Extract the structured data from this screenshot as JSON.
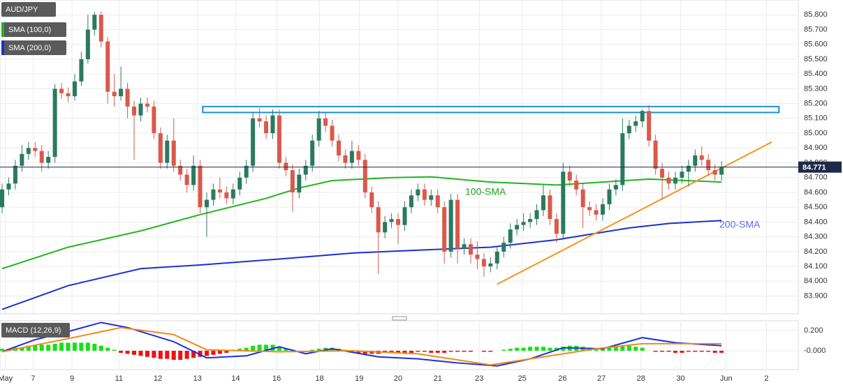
{
  "chart_data": [
    {
      "type": "candlestick",
      "title": "AUD/JPY",
      "x": [
        0,
        1,
        2,
        3,
        4,
        5,
        6,
        7,
        8,
        9,
        10,
        11,
        12,
        13,
        14,
        15,
        16,
        17,
        18,
        19,
        20,
        21,
        22,
        23,
        24,
        25,
        26,
        27,
        28,
        29,
        30,
        31,
        32,
        33,
        34,
        35,
        36,
        37,
        38,
        39,
        40,
        41,
        42,
        43,
        44,
        45,
        46,
        47,
        48,
        49,
        50,
        51,
        52,
        53,
        54,
        55,
        56,
        57,
        58,
        59,
        60,
        61,
        62,
        63,
        64,
        65,
        66,
        67,
        68,
        69,
        70,
        71,
        72,
        73,
        74,
        75,
        76,
        77,
        78,
        79,
        80,
        81,
        82,
        83,
        84,
        85,
        86,
        87,
        88,
        89,
        90,
        91,
        92,
        93,
        94,
        95,
        96,
        97,
        98,
        99,
        100,
        101,
        102,
        103,
        104,
        105,
        106,
        107,
        108,
        109
      ],
      "candles": {
        "open": [
          84.5,
          84.62,
          84.66,
          84.78,
          84.86,
          84.9,
          84.88,
          84.8,
          84.84,
          85.3,
          85.27,
          85.25,
          85.35,
          85.5,
          85.7,
          85.8,
          85.62,
          85.28,
          85.25,
          85.3,
          85.18,
          85.12,
          85.2,
          85.18,
          85.0,
          84.8,
          84.95,
          84.78,
          84.72,
          84.65,
          84.78,
          84.5,
          84.55,
          84.62,
          84.6,
          84.56,
          84.62,
          84.7,
          84.78,
          85.1,
          85.08,
          85.0,
          85.12,
          84.8,
          84.75,
          84.6,
          84.72,
          84.78,
          84.95,
          85.1,
          85.05,
          84.95,
          84.85,
          84.8,
          84.88,
          84.82,
          84.6,
          84.5,
          84.33,
          84.4,
          84.42,
          84.38,
          84.5,
          84.58,
          84.62,
          84.55,
          84.58,
          84.5,
          84.2,
          84.55,
          84.22,
          84.25,
          84.18,
          84.15,
          84.1,
          84.12,
          84.2,
          84.26,
          84.35,
          84.38,
          84.4,
          84.42,
          84.48,
          84.58,
          84.42,
          84.32,
          84.74,
          84.68,
          84.62,
          84.5,
          84.48,
          84.45,
          84.52,
          84.62,
          84.65,
          85.0,
          85.05,
          85.08,
          85.15,
          84.95,
          84.76,
          84.7,
          84.66,
          84.7,
          84.74,
          84.78,
          84.85,
          84.82,
          84.75,
          84.72
        ],
        "high": [
          84.66,
          84.7,
          84.82,
          84.92,
          84.94,
          84.94,
          84.92,
          84.88,
          85.33,
          85.34,
          85.31,
          85.4,
          85.55,
          85.8,
          85.82,
          85.82,
          85.65,
          85.4,
          85.45,
          85.34,
          85.22,
          85.24,
          85.24,
          85.22,
          85.04,
          84.99,
          85.1,
          84.82,
          84.76,
          84.85,
          84.82,
          84.6,
          84.66,
          84.7,
          84.64,
          84.66,
          84.74,
          84.82,
          85.14,
          85.17,
          85.12,
          85.16,
          85.16,
          84.84,
          84.79,
          84.76,
          84.82,
          84.99,
          85.15,
          85.14,
          85.09,
          84.99,
          84.89,
          84.95,
          84.92,
          84.86,
          84.64,
          84.54,
          84.44,
          84.46,
          84.46,
          84.54,
          84.62,
          84.66,
          84.66,
          84.62,
          84.62,
          84.54,
          84.59,
          84.59,
          84.29,
          84.29,
          84.27,
          84.19,
          84.16,
          84.24,
          84.3,
          84.39,
          84.42,
          84.46,
          84.46,
          84.52,
          84.65,
          84.62,
          84.46,
          84.8,
          84.78,
          84.72,
          84.66,
          84.54,
          84.52,
          84.56,
          84.66,
          84.69,
          85.1,
          85.09,
          85.12,
          85.16,
          85.19,
          84.99,
          84.8,
          84.74,
          84.74,
          84.78,
          84.82,
          84.89,
          84.91,
          84.86,
          84.79,
          84.81
        ],
        "low": [
          84.46,
          84.58,
          84.62,
          84.74,
          84.82,
          84.84,
          84.74,
          84.76,
          84.8,
          85.23,
          85.21,
          85.22,
          85.32,
          85.47,
          85.66,
          85.58,
          85.2,
          85.18,
          85.22,
          85.1,
          84.82,
          85.08,
          85.14,
          84.96,
          84.76,
          84.76,
          84.74,
          84.68,
          84.6,
          84.61,
          84.46,
          84.3,
          84.51,
          84.56,
          84.52,
          84.52,
          84.58,
          84.66,
          84.74,
          85.04,
          84.96,
          84.96,
          84.76,
          84.71,
          84.47,
          84.56,
          84.68,
          84.74,
          84.91,
          85.01,
          84.91,
          84.81,
          84.76,
          84.76,
          84.78,
          84.56,
          84.46,
          84.05,
          84.29,
          84.36,
          84.25,
          84.34,
          84.46,
          84.54,
          84.51,
          84.51,
          84.46,
          84.12,
          84.16,
          84.12,
          84.18,
          84.12,
          84.08,
          84.03,
          84.06,
          84.08,
          84.16,
          84.22,
          84.31,
          84.34,
          84.36,
          84.38,
          84.44,
          84.38,
          84.26,
          84.28,
          84.64,
          84.58,
          84.36,
          84.44,
          84.41,
          84.41,
          84.48,
          84.58,
          84.61,
          84.96,
          85.01,
          85.04,
          84.91,
          84.72,
          84.55,
          84.62,
          84.62,
          84.66,
          84.64,
          84.74,
          84.78,
          84.71,
          84.68,
          84.68
        ],
        "close": [
          84.62,
          84.66,
          84.78,
          84.86,
          84.9,
          84.88,
          84.8,
          84.84,
          85.3,
          85.27,
          85.25,
          85.35,
          85.5,
          85.7,
          85.8,
          85.62,
          85.28,
          85.25,
          85.3,
          85.18,
          85.12,
          85.2,
          85.18,
          85.0,
          84.8,
          84.95,
          84.78,
          84.72,
          84.65,
          84.78,
          84.5,
          84.55,
          84.62,
          84.6,
          84.56,
          84.62,
          84.7,
          84.78,
          85.1,
          85.08,
          85.0,
          85.12,
          84.8,
          84.75,
          84.6,
          84.72,
          84.78,
          84.95,
          85.1,
          85.05,
          84.95,
          84.85,
          84.8,
          84.88,
          84.82,
          84.6,
          84.5,
          84.33,
          84.4,
          84.42,
          84.38,
          84.5,
          84.58,
          84.62,
          84.55,
          84.58,
          84.5,
          84.2,
          84.55,
          84.22,
          84.25,
          84.18,
          84.15,
          84.1,
          84.12,
          84.2,
          84.26,
          84.35,
          84.38,
          84.4,
          84.42,
          84.48,
          84.58,
          84.42,
          84.32,
          84.74,
          84.68,
          84.62,
          84.5,
          84.48,
          84.45,
          84.52,
          84.62,
          84.65,
          85.0,
          85.05,
          85.08,
          85.15,
          84.95,
          84.76,
          84.7,
          84.66,
          84.7,
          84.74,
          84.78,
          84.85,
          84.82,
          84.75,
          84.72,
          84.77
        ],
        "up_color": "#2b7a5e",
        "down_color": "#d9594c"
      },
      "lines": [
        {
          "name": "SMA (100,0)",
          "color": "#1fb51f",
          "x": [
            0,
            10,
            21,
            30,
            40,
            45,
            50,
            59,
            65,
            74,
            84,
            91,
            98,
            109
          ],
          "values": [
            84.085,
            84.23,
            84.34,
            84.45,
            84.56,
            84.63,
            84.68,
            84.7,
            84.705,
            84.67,
            84.65,
            84.67,
            84.69,
            84.67
          ]
        },
        {
          "name": "SMA (200,0)",
          "color": "#1a2fd6",
          "x": [
            0,
            10,
            21,
            30,
            42,
            53,
            63,
            74,
            84,
            95,
            101,
            109
          ],
          "values": [
            83.81,
            83.97,
            84.085,
            84.11,
            84.15,
            84.19,
            84.21,
            84.23,
            84.28,
            84.36,
            84.39,
            84.41
          ]
        }
      ],
      "annotations": [
        {
          "text": "100-SMA",
          "color": "#1aa51a"
        },
        {
          "text": "200-SMA",
          "color": "#5a6cf0"
        }
      ],
      "trendline": {
        "color": "#f7931a",
        "x": [
          75,
          116.6
        ],
        "values": [
          83.98,
          84.94
        ]
      },
      "zone": {
        "color": "#1e90d6",
        "x": [
          30.4,
          117.7
        ],
        "values": [
          85.14,
          85.18
        ]
      },
      "last_price": 84.771,
      "last_color": "#1b2a4a",
      "xlim": [
        -0.32,
        120.63
      ],
      "ylim": [
        83.78,
        85.9
      ],
      "xticks": [
        {
          "value": 0.5,
          "label": "May"
        },
        {
          "value": 4.7,
          "label": "7"
        },
        {
          "value": 10.6,
          "label": "9"
        },
        {
          "value": 17.7,
          "label": "11"
        },
        {
          "value": 23.6,
          "label": "12"
        },
        {
          "value": 29.6,
          "label": "13"
        },
        {
          "value": 35.4,
          "label": "14"
        },
        {
          "value": 41.6,
          "label": "16"
        },
        {
          "value": 48.1,
          "label": "18"
        },
        {
          "value": 54.1,
          "label": "19"
        },
        {
          "value": 60,
          "label": "20"
        },
        {
          "value": 66,
          "label": "21"
        },
        {
          "value": 72.3,
          "label": "23"
        },
        {
          "value": 78.8,
          "label": "25"
        },
        {
          "value": 84.9,
          "label": "26"
        },
        {
          "value": 90.8,
          "label": "27"
        },
        {
          "value": 96.8,
          "label": "28"
        },
        {
          "value": 102.8,
          "label": "30"
        },
        {
          "value": 109.7,
          "label": "Jun"
        },
        {
          "value": 115.8,
          "label": "2"
        }
      ],
      "yticks": [
        {
          "value": 83.9,
          "label": "83.900"
        },
        {
          "value": 84.0,
          "label": "84.000"
        },
        {
          "value": 84.1,
          "label": "84.100"
        },
        {
          "value": 84.2,
          "label": "84.200"
        },
        {
          "value": 84.3,
          "label": "84.300"
        },
        {
          "value": 84.4,
          "label": "84.400"
        },
        {
          "value": 84.5,
          "label": "84.500"
        },
        {
          "value": 84.6,
          "label": "84.600"
        },
        {
          "value": 84.7,
          "label": "84.700"
        },
        {
          "value": 84.8,
          "label": "84.800"
        },
        {
          "value": 84.9,
          "label": "84.900"
        },
        {
          "value": 85.0,
          "label": "85.000"
        },
        {
          "value": 85.1,
          "label": "85.100"
        },
        {
          "value": 85.2,
          "label": "85.200"
        },
        {
          "value": 85.3,
          "label": "85.300"
        },
        {
          "value": 85.4,
          "label": "85.400"
        },
        {
          "value": 85.5,
          "label": "85.500"
        },
        {
          "value": 85.6,
          "label": "85.600"
        },
        {
          "value": 85.7,
          "label": "85.700"
        },
        {
          "value": 85.8,
          "label": "85.800"
        }
      ],
      "grid": true
    },
    {
      "type": "macd",
      "title": "MACD (12,26,9)",
      "x": [
        0,
        1,
        2,
        3,
        4,
        5,
        6,
        7,
        8,
        9,
        10,
        11,
        12,
        13,
        14,
        15,
        16,
        17,
        18,
        19,
        20,
        21,
        22,
        23,
        24,
        25,
        26,
        27,
        28,
        29,
        30,
        31,
        32,
        33,
        34,
        35,
        36,
        37,
        38,
        39,
        40,
        41,
        42,
        43,
        44,
        45,
        46,
        47,
        48,
        49,
        50,
        51,
        52,
        53,
        54,
        55,
        56,
        57,
        58,
        59,
        60,
        61,
        62,
        63,
        64,
        65,
        66,
        67,
        68,
        69,
        70,
        71,
        72,
        73,
        74,
        75,
        76,
        77,
        78,
        79,
        80,
        81,
        82,
        83,
        84,
        85,
        86,
        87,
        88,
        89,
        90,
        91,
        92,
        93,
        94,
        95,
        96,
        97,
        98,
        99,
        100,
        101,
        102,
        103,
        104,
        105,
        106,
        107,
        108,
        109
      ],
      "histogram": {
        "up_color": "#18e018",
        "down_color": "#f01010",
        "values": [
          0.02,
          0.02,
          0.03,
          0.03,
          0.05,
          0.06,
          0.06,
          0.06,
          0.07,
          0.08,
          0.08,
          0.08,
          0.08,
          0.08,
          0.07,
          0.05,
          0.03,
          0.01,
          -0.02,
          -0.03,
          -0.04,
          -0.05,
          -0.06,
          -0.07,
          -0.08,
          -0.08,
          -0.09,
          -0.09,
          -0.08,
          -0.07,
          -0.06,
          -0.05,
          -0.04,
          -0.03,
          -0.02,
          0.01,
          0.02,
          0.03,
          0.05,
          0.06,
          0.06,
          0.06,
          0.04,
          0.02,
          0.01,
          -0.01,
          0.0,
          0.01,
          0.02,
          0.03,
          0.03,
          0.02,
          0.01,
          -0.01,
          -0.02,
          -0.03,
          -0.03,
          -0.03,
          -0.02,
          -0.02,
          -0.02,
          -0.02,
          -0.02,
          -0.01,
          -0.01,
          -0.02,
          -0.02,
          -0.02,
          -0.01,
          -0.01,
          -0.01,
          -0.01,
          0.0,
          -0.01,
          -0.01,
          0.0,
          0.01,
          0.02,
          0.03,
          0.03,
          0.04,
          0.04,
          0.04,
          0.03,
          0.03,
          0.04,
          0.05,
          0.05,
          0.04,
          0.03,
          0.02,
          0.02,
          0.03,
          0.04,
          0.05,
          0.05,
          0.04,
          0.03,
          0.0,
          -0.01,
          -0.01,
          -0.01,
          -0.02,
          -0.02,
          -0.01,
          -0.01,
          -0.01,
          -0.01,
          -0.02,
          -0.02
        ]
      },
      "lines": [
        {
          "color": "#1a2fe0",
          "x": [
            0,
            5,
            10,
            15,
            19,
            26,
            31,
            37,
            42,
            46,
            50,
            57,
            63,
            69,
            75,
            80,
            85,
            91,
            97,
            102,
            109
          ],
          "values": [
            -0.01,
            0.11,
            0.19,
            0.28,
            0.23,
            0.09,
            -0.07,
            -0.05,
            0.04,
            -0.03,
            0.02,
            -0.06,
            -0.08,
            -0.12,
            -0.15,
            -0.08,
            0.03,
            0.02,
            0.13,
            0.08,
            0.05
          ]
        },
        {
          "color": "#f08a1a",
          "x": [
            0,
            10,
            18,
            26,
            31,
            42,
            53,
            63,
            74,
            82,
            90,
            97,
            109
          ],
          "values": [
            -0.01,
            0.12,
            0.23,
            0.16,
            0.01,
            -0.01,
            0.0,
            -0.03,
            -0.14,
            -0.06,
            0.02,
            0.07,
            0.07
          ]
        }
      ],
      "ylim": [
        -0.186,
        0.297
      ],
      "yticks": [
        {
          "value": 0,
          "label": "-0.000"
        },
        {
          "value": 0.2,
          "label": "0.200"
        }
      ],
      "grid": true
    }
  ]
}
